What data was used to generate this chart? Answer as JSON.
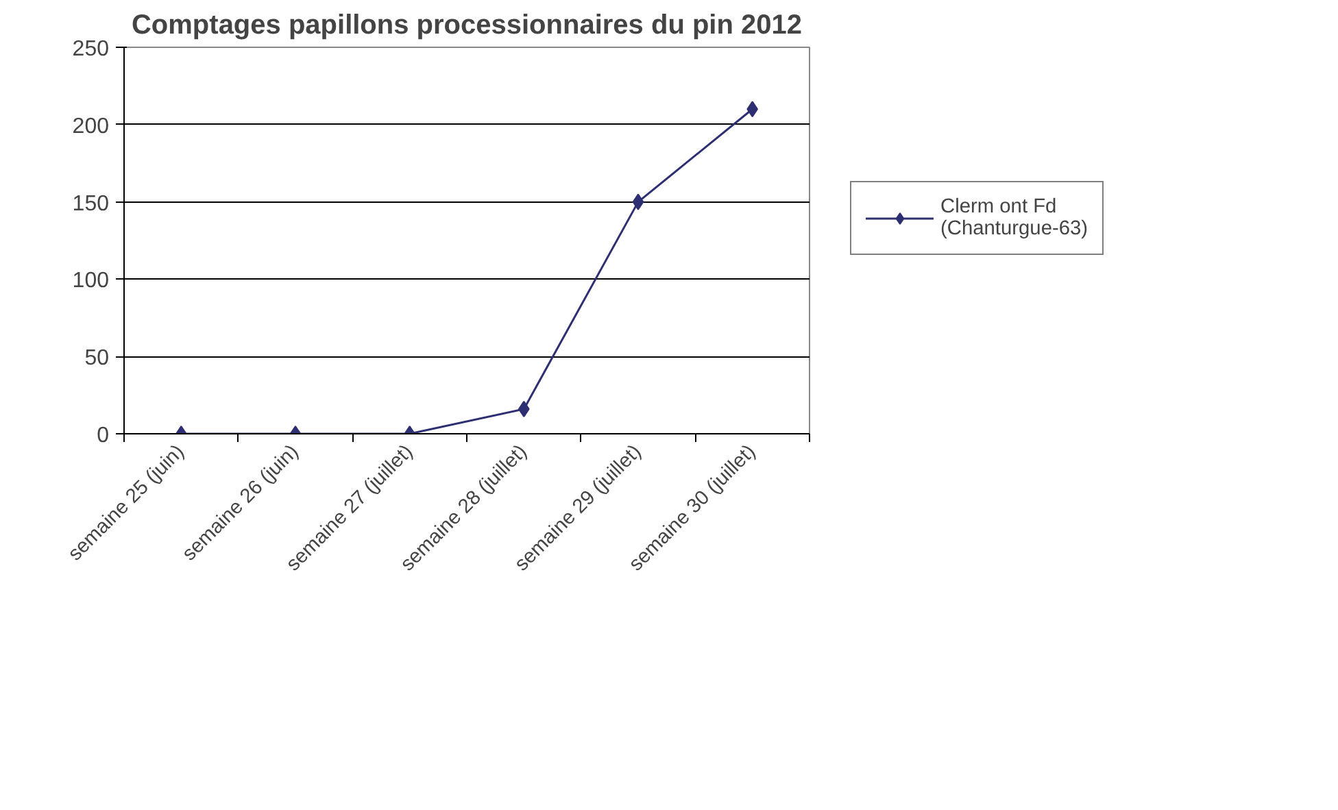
{
  "chart_data": {
    "type": "line",
    "title": "Comptages papillons processionnaires du pin 2012",
    "categories": [
      "semaine 25 (juin)",
      "semaine 26 (juin)",
      "semaine 27 (juillet)",
      "semaine 28 (juillet)",
      "semaine 29 (juillet)",
      "semaine 30 (juillet)"
    ],
    "series": [
      {
        "name": "Clerm ont Fd\n(Chanturgue-63)",
        "color": "#2e2e72",
        "values": [
          0,
          0,
          0,
          16,
          150,
          210
        ]
      }
    ],
    "ylim": [
      0,
      250
    ],
    "yticks": [
      0,
      50,
      100,
      150,
      200,
      250
    ],
    "grid": "y",
    "legend": "right",
    "marker": "diamond",
    "line_style": "solid"
  }
}
